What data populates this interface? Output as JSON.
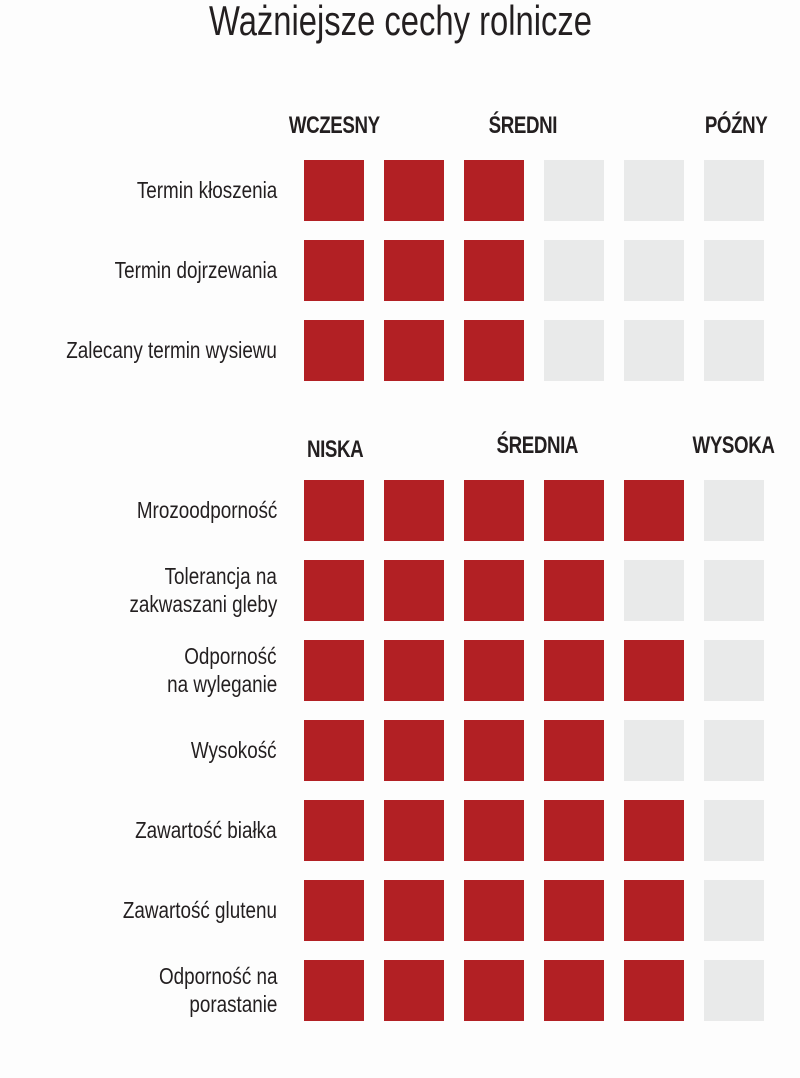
{
  "title": "Ważniejsze cechy rolnicze",
  "chart_data": {
    "type": "table",
    "title": "Ważniejsze cechy rolnicze",
    "max": 6,
    "colors": {
      "filled": "#b22024",
      "empty": "#e9eaea"
    },
    "sections": [
      {
        "scale_labels": [
          "WCZESNY",
          "ŚREDNI",
          "PÓŹNY"
        ],
        "rows": [
          {
            "label": [
              "Termin kłoszenia"
            ],
            "value": 3
          },
          {
            "label": [
              "Termin dojrzewania"
            ],
            "value": 3
          },
          {
            "label": [
              "Zalecany termin wysiewu"
            ],
            "value": 3
          }
        ]
      },
      {
        "scale_labels": [
          "NISKA",
          "ŚREDNIA",
          "WYSOKA"
        ],
        "rows": [
          {
            "label": [
              "Mrozoodporność"
            ],
            "value": 5
          },
          {
            "label": [
              "Tolerancja na",
              "zakwaszani gleby"
            ],
            "value": 4
          },
          {
            "label": [
              "Odporność",
              "na wyleganie"
            ],
            "value": 5
          },
          {
            "label": [
              "Wysokość"
            ],
            "value": 4
          },
          {
            "label": [
              "Zawartość białka"
            ],
            "value": 5
          },
          {
            "label": [
              "Zawartość glutenu"
            ],
            "value": 5
          },
          {
            "label": [
              "Odporność na",
              "porastanie"
            ],
            "value": 5
          }
        ]
      }
    ]
  }
}
